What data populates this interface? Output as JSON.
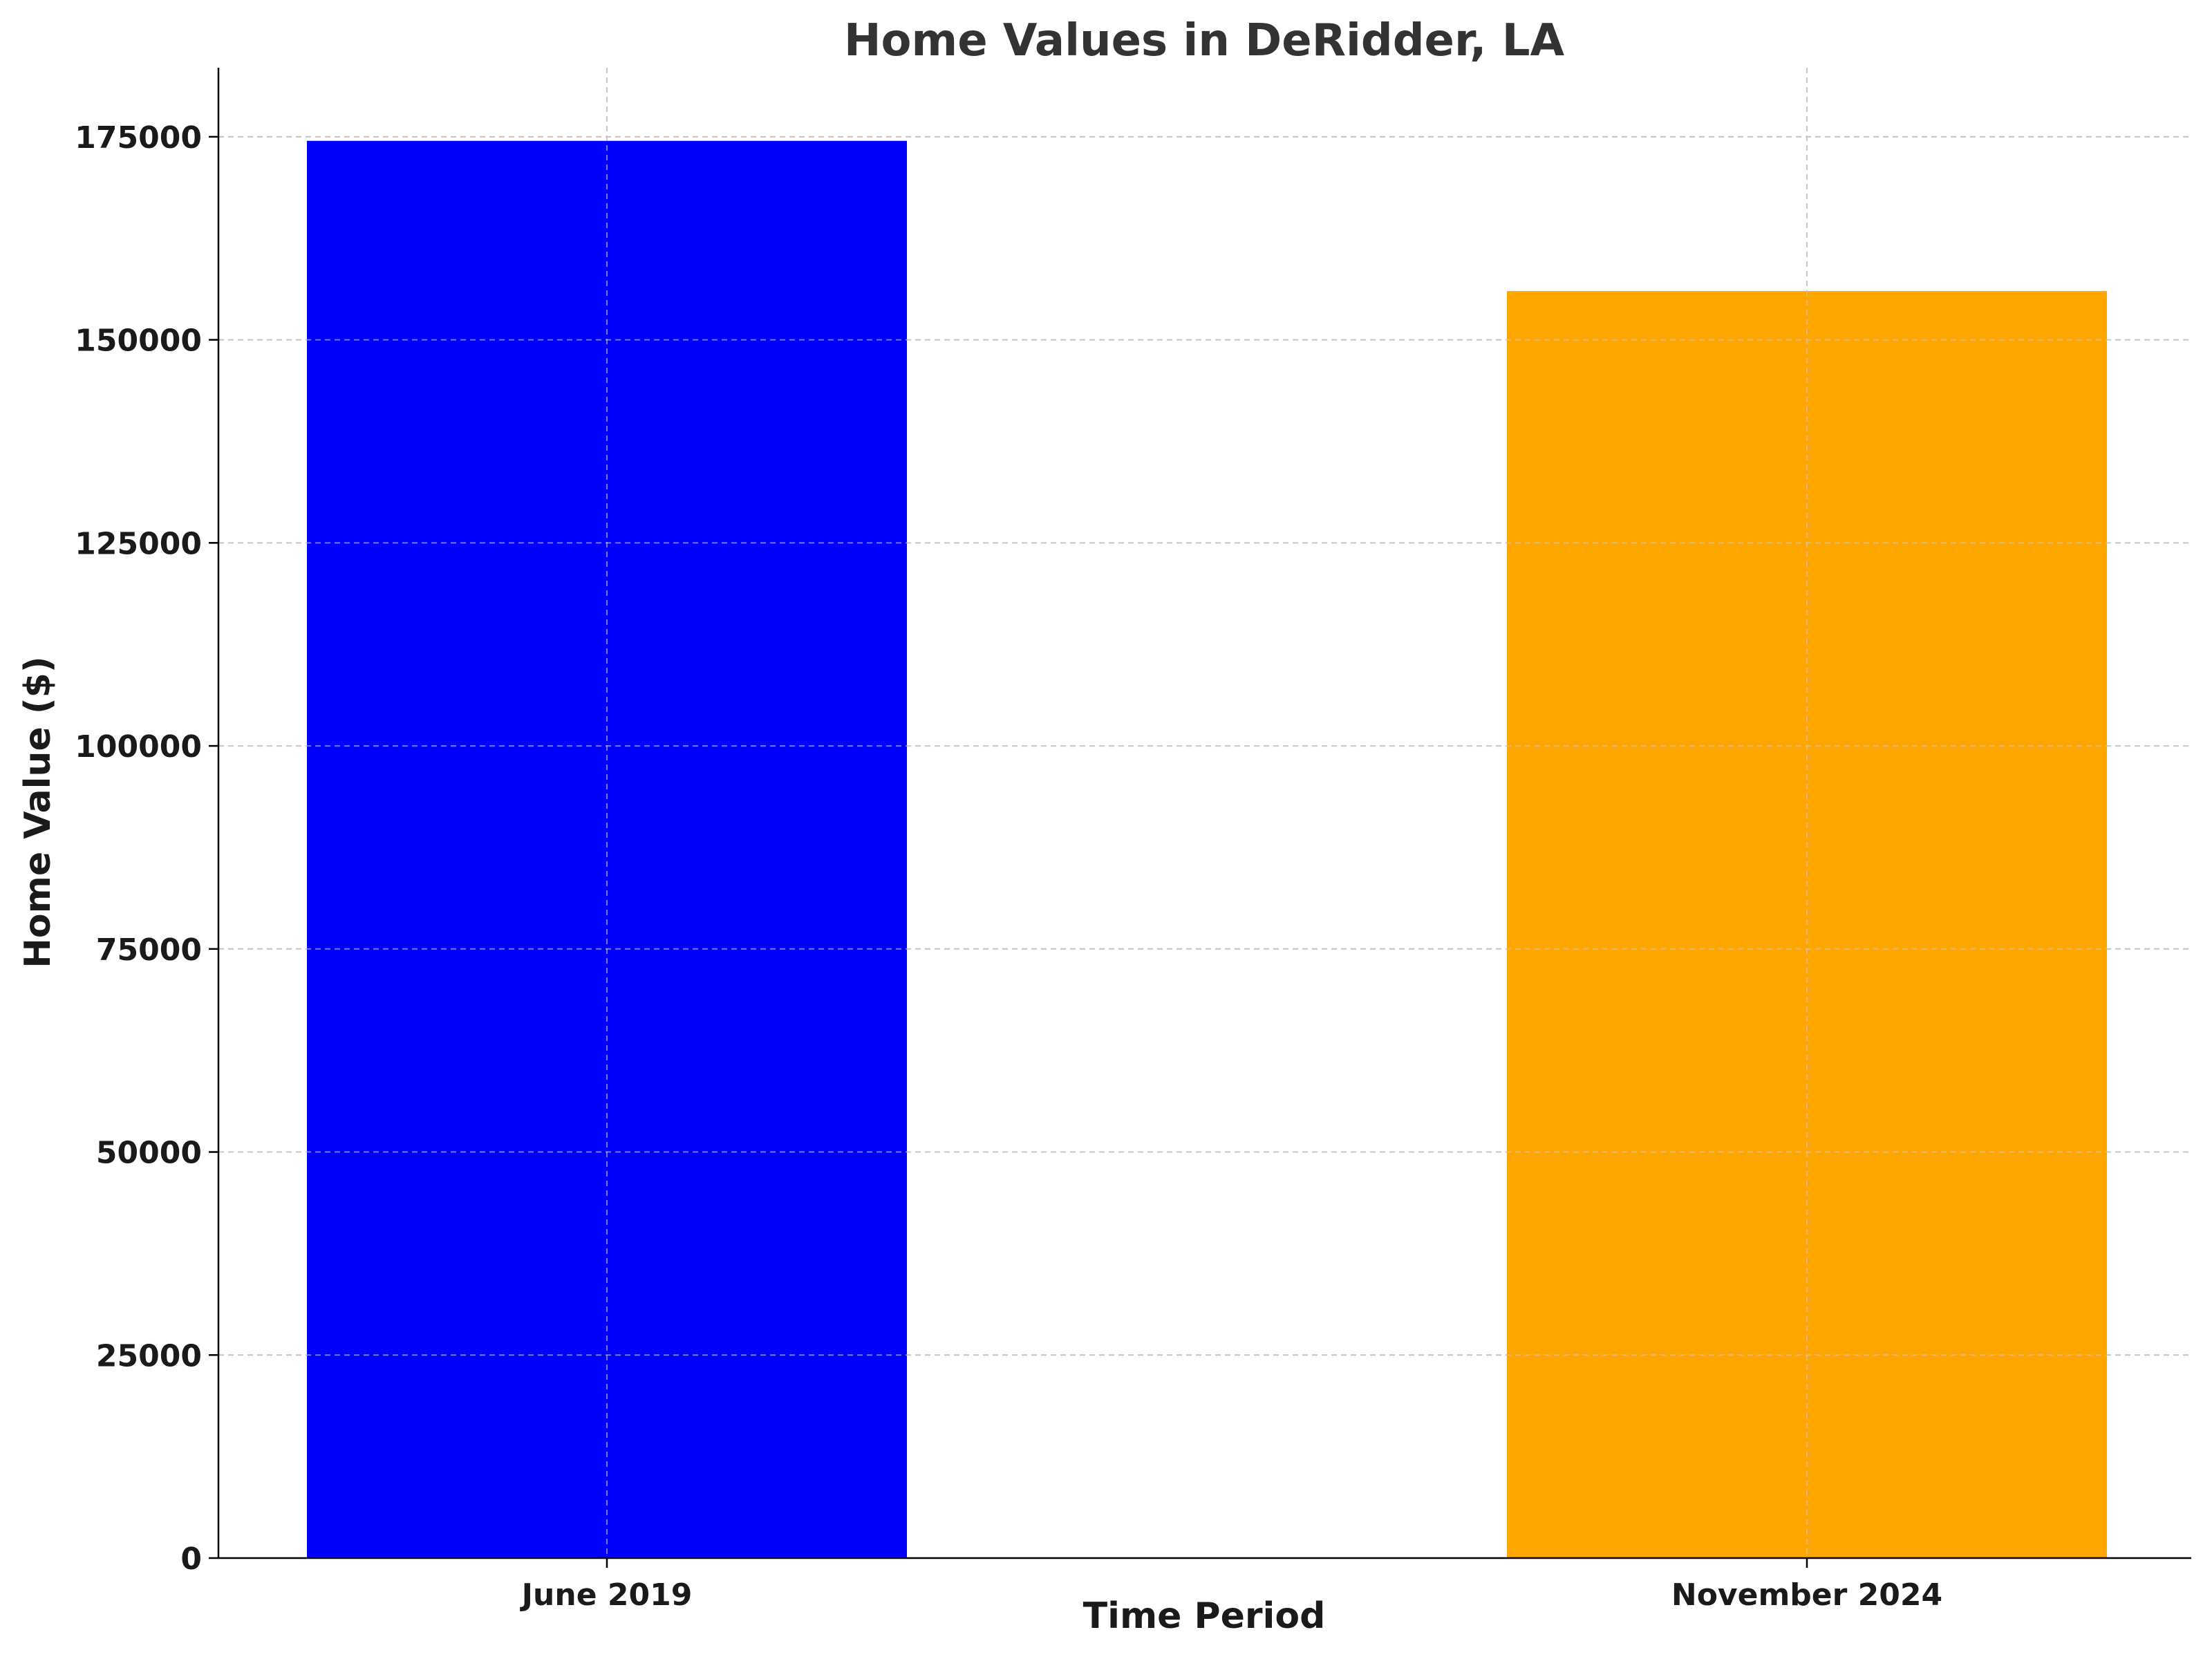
{
  "chart_data": {
    "type": "bar",
    "title": "Home Values in DeRidder, LA",
    "xlabel": "Time Period",
    "ylabel": "Home Value ($)",
    "categories": [
      "June 2019",
      "November 2024"
    ],
    "values": [
      174500,
      156000
    ],
    "colors": [
      "#0000ff",
      "#ffa500"
    ],
    "ylim": [
      0,
      183500
    ],
    "yticks": [
      0,
      25000,
      50000,
      75000,
      100000,
      125000,
      150000,
      175000
    ],
    "ytick_labels": [
      "0",
      "25000",
      "50000",
      "75000",
      "100000",
      "125000",
      "150000",
      "175000"
    ],
    "grid": true,
    "legend": "none"
  }
}
